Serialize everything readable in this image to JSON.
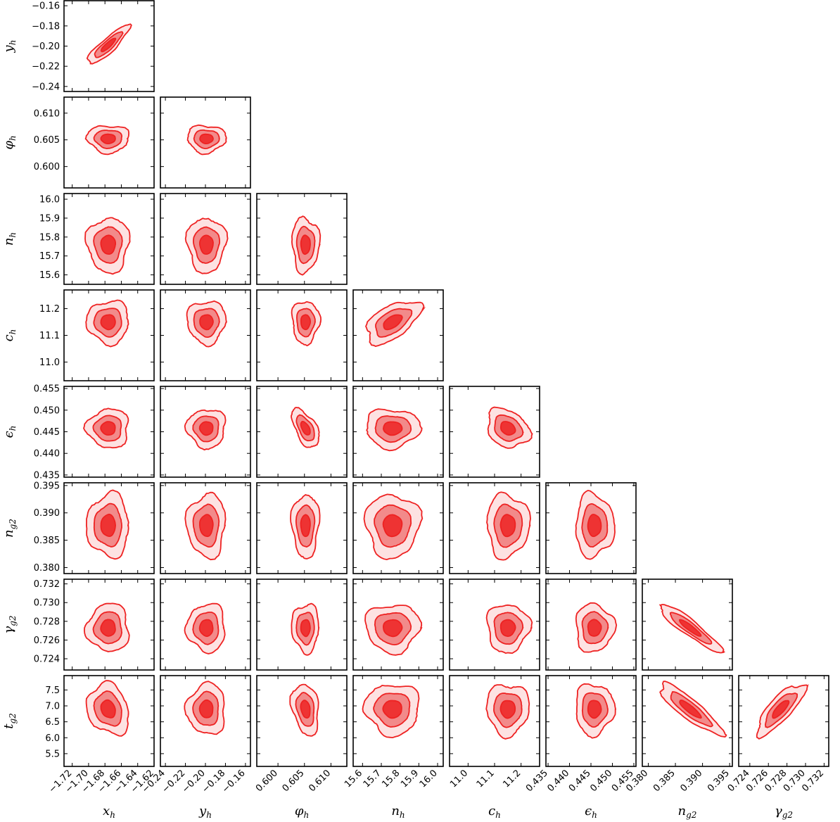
{
  "chart_data": {
    "type": "corner",
    "contour_levels": [
      "1-sigma",
      "2-sigma",
      "3-sigma"
    ],
    "colors": {
      "line": "#ee2222",
      "inner": "#ee3333",
      "middle": "#f28a8a",
      "outer": "#fde2e2",
      "frame": "#000000"
    },
    "parameters": [
      {
        "id": "xh",
        "label": "x",
        "sub": "h",
        "lim": [
          -1.73,
          -1.62
        ],
        "ticks": [
          "-1.72",
          "-1.70",
          "-1.68",
          "-1.66",
          "-1.64",
          "-1.62"
        ],
        "tick_values": [
          -1.72,
          -1.7,
          -1.68,
          -1.66,
          -1.64,
          -1.62
        ],
        "mean": -1.676,
        "sd": 0.008
      },
      {
        "id": "yh",
        "label": "y",
        "sub": "h",
        "lim": [
          -0.245,
          -0.155
        ],
        "ticks": [
          "-0.24",
          "-0.22",
          "-0.20",
          "-0.18",
          "-0.16"
        ],
        "tick_values": [
          -0.24,
          -0.22,
          -0.2,
          -0.18,
          -0.16
        ],
        "mean": -0.199,
        "sd": 0.006
      },
      {
        "id": "phih",
        "label": "φ",
        "sub": "h",
        "lim": [
          0.596,
          0.613
        ],
        "ticks": [
          "0.600",
          "0.605",
          "0.610"
        ],
        "tick_values": [
          0.6,
          0.605,
          0.61
        ],
        "mean": 0.6052,
        "sd": 0.0008
      },
      {
        "id": "nh",
        "label": "n",
        "sub": "h",
        "lim": [
          15.55,
          16.03
        ],
        "ticks": [
          "15.6",
          "15.7",
          "15.8",
          "15.9",
          "16.0"
        ],
        "tick_values": [
          15.6,
          15.7,
          15.8,
          15.9,
          16.0
        ],
        "mean": 15.76,
        "sd": 0.045
      },
      {
        "id": "ch",
        "label": "c",
        "sub": "h",
        "lim": [
          10.93,
          11.27
        ],
        "ticks": [
          "11.0",
          "11.1",
          "11.2"
        ],
        "tick_values": [
          11.0,
          11.1,
          11.2
        ],
        "mean": 11.15,
        "sd": 0.025
      },
      {
        "id": "eh",
        "label": "ϵ",
        "sub": "h",
        "lim": [
          0.4345,
          0.4555
        ],
        "ticks": [
          "0.435",
          "0.440",
          "0.445",
          "0.450",
          "0.455"
        ],
        "tick_values": [
          0.435,
          0.44,
          0.445,
          0.45,
          0.455
        ],
        "mean": 0.4458,
        "sd": 0.0014
      },
      {
        "id": "ng2",
        "label": "n",
        "sub": "g2",
        "lim": [
          0.3789,
          0.3955
        ],
        "ticks": [
          "0.380",
          "0.385",
          "0.390",
          "0.395"
        ],
        "tick_values": [
          0.38,
          0.385,
          0.39,
          0.395
        ],
        "mean": 0.3877,
        "sd": 0.0018
      },
      {
        "id": "gg2",
        "label": "γ",
        "sub": "g2",
        "lim": [
          0.7228,
          0.7325
        ],
        "ticks": [
          "0.724",
          "0.726",
          "0.728",
          "0.730",
          "0.732"
        ],
        "tick_values": [
          0.724,
          0.726,
          0.728,
          0.73,
          0.732
        ],
        "mean": 0.7273,
        "sd": 0.0008
      },
      {
        "id": "tg2",
        "label": "t",
        "sub": "g2",
        "lim": [
          5.1,
          7.95
        ],
        "ticks": [
          "5.5",
          "6.0",
          "6.5",
          "7.0",
          "7.5"
        ],
        "tick_values": [
          5.5,
          6.0,
          6.5,
          7.0,
          7.5
        ],
        "mean": 6.9,
        "sd": 0.25
      }
    ],
    "correlations": [
      {
        "pair": [
          "xh",
          "yh"
        ],
        "rho": 0.88
      },
      {
        "pair": [
          "phih",
          "eh"
        ],
        "rho": -0.55
      },
      {
        "pair": [
          "nh",
          "ch"
        ],
        "rho": 0.55
      },
      {
        "pair": [
          "ch",
          "eh"
        ],
        "rho": -0.25
      },
      {
        "pair": [
          "ng2",
          "gg2"
        ],
        "rho": -0.92
      },
      {
        "pair": [
          "ng2",
          "tg2"
        ],
        "rho": -0.88
      },
      {
        "pair": [
          "gg2",
          "tg2"
        ],
        "rho": 0.8
      },
      {
        "pair": [
          "phih",
          "tg2"
        ],
        "rho": -0.25
      },
      {
        "pair": [
          "xh",
          "tg2"
        ],
        "rho": -0.2
      }
    ]
  }
}
